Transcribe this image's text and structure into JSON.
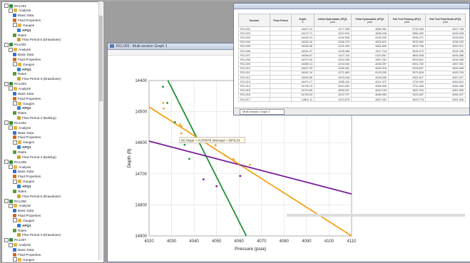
{
  "tree": {
    "items": [
      {
        "label": "RCL001",
        "level": 0,
        "kind": "well",
        "exp": "-"
      },
      {
        "label": "Analysis",
        "level": 1,
        "kind": "folder",
        "exp": "-"
      },
      {
        "label": "Basic Data",
        "level": 2,
        "kind": "data"
      },
      {
        "label": "Fluid Properties",
        "level": 2,
        "kind": "fluid"
      },
      {
        "label": "Gauges",
        "level": 2,
        "kind": "folder",
        "exp": "-"
      },
      {
        "label": "APQ1",
        "level": 3,
        "kind": "gauge"
      },
      {
        "label": "Rates",
        "level": 2,
        "kind": "rates"
      },
      {
        "label": "Flow Period 5 (Drawdown)",
        "level": 3,
        "kind": "flow"
      },
      {
        "label": "RCL002",
        "level": 0,
        "kind": "well",
        "exp": "-"
      },
      {
        "label": "Analysis",
        "level": 1,
        "kind": "folder",
        "exp": "-"
      },
      {
        "label": "Basic Data",
        "level": 2,
        "kind": "data"
      },
      {
        "label": "Fluid Properties",
        "level": 2,
        "kind": "fluid"
      },
      {
        "label": "Gauges",
        "level": 2,
        "kind": "folder",
        "exp": "-"
      },
      {
        "label": "APQ1",
        "level": 3,
        "kind": "gauge"
      },
      {
        "label": "Rates",
        "level": 2,
        "kind": "rates"
      },
      {
        "label": "Flow Period 3 (Drawdown)",
        "level": 3,
        "kind": "flow"
      },
      {
        "label": "RCL003",
        "level": 0,
        "kind": "well",
        "exp": "-"
      },
      {
        "label": "Analysis",
        "level": 1,
        "kind": "folder",
        "exp": "-"
      },
      {
        "label": "Basic Data",
        "level": 2,
        "kind": "data"
      },
      {
        "label": "Fluid Properties",
        "level": 2,
        "kind": "fluid"
      },
      {
        "label": "Gauges",
        "level": 2,
        "kind": "folder",
        "exp": "-"
      },
      {
        "label": "APQ1",
        "level": 3,
        "kind": "gauge"
      },
      {
        "label": "Rates",
        "level": 2,
        "kind": "rates"
      },
      {
        "label": "Flow Period 2 (Buildup)",
        "level": 3,
        "kind": "flow"
      },
      {
        "label": "RCL004",
        "level": 0,
        "kind": "well",
        "exp": "-"
      },
      {
        "label": "Analysis",
        "level": 1,
        "kind": "folder",
        "exp": "-"
      },
      {
        "label": "Basic Data",
        "level": 2,
        "kind": "data"
      },
      {
        "label": "Fluid Properties",
        "level": 2,
        "kind": "fluid"
      },
      {
        "label": "Gauges",
        "level": 2,
        "kind": "folder",
        "exp": "-"
      },
      {
        "label": "APQ1",
        "level": 3,
        "kind": "gauge"
      },
      {
        "label": "Rates",
        "level": 2,
        "kind": "rates"
      },
      {
        "label": "Flow Period 4 (Buildup)",
        "level": 3,
        "kind": "flow"
      },
      {
        "label": "RCL005",
        "level": 0,
        "kind": "well",
        "exp": "-"
      },
      {
        "label": "Analysis",
        "level": 1,
        "kind": "folder",
        "exp": "-"
      },
      {
        "label": "Basic Data",
        "level": 2,
        "kind": "data"
      },
      {
        "label": "Fluid Properties",
        "level": 2,
        "kind": "fluid"
      },
      {
        "label": "Gauges",
        "level": 2,
        "kind": "folder",
        "exp": "-"
      },
      {
        "label": "APQ1",
        "level": 3,
        "kind": "gauge"
      },
      {
        "label": "Rates",
        "level": 2,
        "kind": "rates"
      },
      {
        "label": "Flow Period 5 (Drawdown)",
        "level": 3,
        "kind": "flow"
      },
      {
        "label": "RCL006",
        "level": 0,
        "kind": "well",
        "exp": "-"
      },
      {
        "label": "Analysis",
        "level": 1,
        "kind": "folder",
        "exp": "-"
      },
      {
        "label": "Basic Data",
        "level": 2,
        "kind": "data"
      },
      {
        "label": "Fluid Properties",
        "level": 2,
        "kind": "fluid"
      },
      {
        "label": "Gauges",
        "level": 2,
        "kind": "folder",
        "exp": "-"
      },
      {
        "label": "APQ1",
        "level": 3,
        "kind": "gauge"
      },
      {
        "label": "Rates",
        "level": 2,
        "kind": "rates"
      },
      {
        "label": "Flow Period 3 (Drawdown)",
        "level": 3,
        "kind": "flow"
      },
      {
        "label": "RCL007",
        "level": 0,
        "kind": "well",
        "exp": "-"
      },
      {
        "label": "Analysis",
        "level": 1,
        "kind": "folder",
        "exp": "-"
      },
      {
        "label": "Basic Data",
        "level": 2,
        "kind": "data"
      },
      {
        "label": "Fluid Properties",
        "level": 2,
        "kind": "fluid"
      },
      {
        "label": "Gauges",
        "level": 2,
        "kind": "folder",
        "exp": "-"
      }
    ]
  },
  "graph_window": {
    "title": "RCL000 - Multi-session Graph 1"
  },
  "table_window": {
    "columns": [
      {
        "label": "Session",
        "units": ""
      },
      {
        "label": "Flow Period",
        "units": ""
      },
      {
        "label": "Depth",
        "units": "ft"
      },
      {
        "label": "Initial Hydrostatic APQ1",
        "units": "psia"
      },
      {
        "label": "Final Hydrostatic APQ1",
        "units": "psia"
      },
      {
        "label": "Fall Test Flowing APQ1",
        "units": "psia"
      },
      {
        "label": "Fall Test Final Build APQ1",
        "units": "psia"
      }
    ],
    "rows": [
      [
        "RCL001",
        "",
        "14407.10",
        "4177.398",
        "4084.961",
        "3710.343",
        "4027.798"
      ],
      [
        "RCL002",
        "",
        "14472.71",
        "4210.924",
        "4098.246",
        "3984.932",
        "4026.348"
      ],
      [
        "RCL003",
        "",
        "14490.24",
        "4194.508",
        "4106.263",
        "3996.271",
        "4026.534"
      ],
      [
        "RCL004",
        "",
        "14532.40",
        "4208.723",
        "4099.621",
        "3933.962",
        "4035.190"
      ],
      [
        "RCL005",
        "",
        "14535.36",
        "4191.993",
        "4081.890",
        "3879.738",
        "4052.971"
      ],
      [
        "RCL006",
        "",
        "14541.37",
        "4128.488",
        "4117.718",
        "3946.073",
        "4033.785"
      ],
      [
        "RCL007",
        "",
        "14546.67",
        "4227.115",
        "4103.967",
        "3840.548",
        "4034.366"
      ],
      [
        "RCL008",
        "",
        "14570.30",
        "4202.335",
        "4087.251",
        "3933.821",
        "4034.285"
      ],
      [
        "RCL009",
        "",
        "14589.14",
        "4219.040",
        "4035.097",
        "3901.752",
        "4057.061"
      ],
      [
        "RCL010",
        "",
        "14607.53",
        "4198.381",
        "4069.016",
        "3208.827",
        "4049.468"
      ],
      [
        "RCL011",
        "",
        "14641.34",
        "4171.663",
        "4103.030",
        "3573.834",
        "4053.793"
      ],
      [
        "RCL012",
        "",
        "14652.56",
        "4203.045",
        "4048.655",
        "3381.817",
        "4057.527"
      ],
      [
        "RCL013",
        "",
        "14671.17",
        "4085.116",
        "4041.472",
        "1732.090",
        "4064.810"
      ],
      [
        "RCL014",
        "",
        "14706.75",
        "4240.252",
        "4056.839",
        "2711.593",
        "4060.458"
      ],
      [
        "RCL015",
        "",
        "14704.69",
        "4095.021",
        "4040.194",
        "1837.016",
        "4061.555"
      ],
      [
        "RCL016",
        "",
        "14750.53",
        "4212.707",
        "4086.962",
        "3103.467",
        "4060.037"
      ],
      [
        "RCL017",
        "",
        "14811.11",
        "4213.876",
        "4087.092",
        "3629.778",
        "4081.836"
      ]
    ],
    "tab_label": "Multi-session Graph 1"
  },
  "chart_data": {
    "type": "scatter",
    "title": "Multi-ses",
    "xlabel": "Pressure (psia)",
    "ylabel": "Depth (ft)",
    "xlim": [
      4020,
      4110
    ],
    "ylim": [
      14900,
      14400
    ],
    "x_ticks": [
      4020,
      4030,
      4040,
      4050,
      4060,
      4070,
      4080,
      4090,
      4100,
      4110
    ],
    "y_ticks": [
      14400,
      14500,
      14600,
      14700,
      14800,
      14900
    ],
    "series": [
      {
        "color": "#1f8f3a",
        "points": [
          [
            4026.2,
            14420
          ],
          [
            4028.1,
            14472
          ],
          [
            4031.5,
            14534
          ],
          [
            4034.3,
            14589
          ],
          [
            4035.8,
            14607
          ],
          [
            4037.9,
            14652
          ]
        ]
      },
      {
        "color": "#f2a31a",
        "points": [
          [
            4026.3,
            14472
          ],
          [
            4026.5,
            14490
          ],
          [
            4033.8,
            14541
          ],
          [
            4034.4,
            14547
          ],
          [
            4034.3,
            14570
          ],
          [
            4049.5,
            14608
          ],
          [
            4053.8,
            14641
          ],
          [
            4057.5,
            14653
          ],
          [
            4058.0,
            14660
          ],
          [
            4059.8,
            14668
          ],
          [
            4064.8,
            14671
          ],
          [
            4060.5,
            14707
          ]
        ]
      },
      {
        "color": "#7a1f9a",
        "points": [
          [
            4044.2,
            14718
          ],
          [
            4050.0,
            14740
          ],
          [
            4060.5,
            14707
          ]
        ]
      }
    ],
    "lines": [
      {
        "color": "#1f8f3a",
        "x1": 4028.4,
        "y1": 14400,
        "x2": 4063.2,
        "y2": 14900
      },
      {
        "color": "#f2a31a",
        "x1": 4020,
        "y1": 14485,
        "x2": 4110,
        "y2": 14900
      },
      {
        "color": "#7a1f9a",
        "x1": 4020,
        "y1": 14595,
        "x2": 4110,
        "y2": 14765
      }
    ],
    "tooltip": "(X) Slope = 0.076076 Intercept = 3879.23"
  },
  "colors": {
    "selection": "#3167c4",
    "grid": "#d9d9d9",
    "window_title": "#c2cde0"
  }
}
